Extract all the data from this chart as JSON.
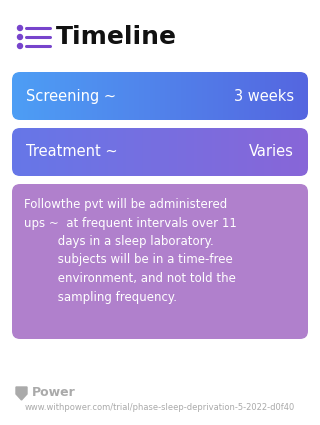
{
  "title": "Timeline",
  "bg_color": "#ffffff",
  "title_color": "#111111",
  "title_fontsize": 18,
  "icon_color": "#7744cc",
  "bars": [
    {
      "label_left": "Screening ~",
      "label_right": "3 weeks",
      "color_left": "#4d9ef5",
      "color_right": "#5566e0",
      "text_color": "#ffffff",
      "text_fontsize": 10.5
    },
    {
      "label_left": "Treatment ~",
      "label_right": "Varies",
      "color_left": "#6677e8",
      "color_right": "#8866d8",
      "text_color": "#ffffff",
      "text_fontsize": 10.5
    }
  ],
  "desc_box": {
    "bg_color": "#b080cc",
    "text_color": "#ffffff",
    "text": "Followthe pvt will be administered\nups ~  at frequent intervals over 11\n         days in a sleep laboratory.\n         subjects will be in a time-free\n         environment, and not told the\n         sampling frequency.",
    "fontsize": 8.5
  },
  "footer_logo_text": "Power",
  "footer_url": "www.withpower.com/trial/phase-sleep-deprivation-5-2022-d0f40",
  "footer_color": "#aaaaaa",
  "footer_logo_size": 9,
  "footer_url_size": 6
}
